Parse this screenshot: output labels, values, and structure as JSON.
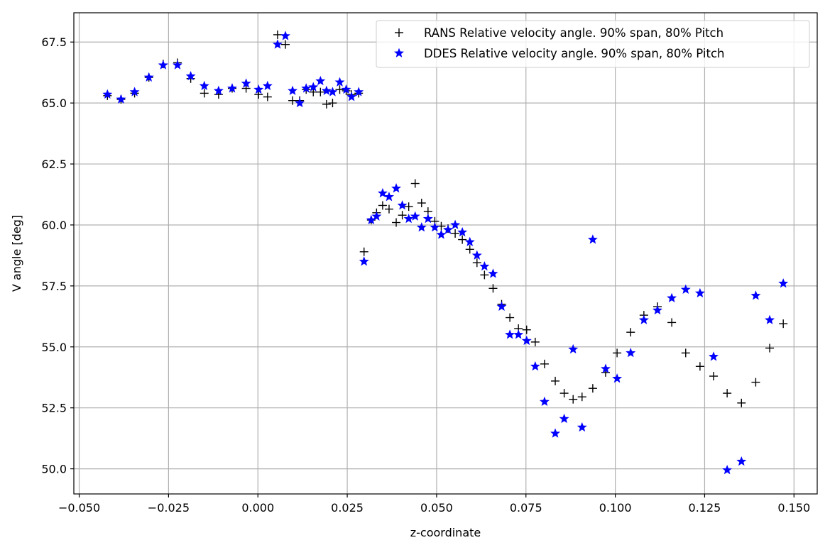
{
  "chart_data": {
    "type": "scatter",
    "xlabel": "z-coordinate",
    "ylabel": "V angle [deg]",
    "xlim": [
      -0.0515,
      0.1565
    ],
    "ylim": [
      48.97,
      68.7
    ],
    "x_ticks": [
      -0.05,
      -0.025,
      0.0,
      0.025,
      0.05,
      0.075,
      0.1,
      0.125,
      0.15
    ],
    "x_tick_labels": [
      "−0.050",
      "−0.025",
      "0.000",
      "0.025",
      "0.050",
      "0.075",
      "0.100",
      "0.125",
      "0.150"
    ],
    "y_ticks": [
      50.0,
      52.5,
      55.0,
      57.5,
      60.0,
      62.5,
      65.0,
      67.5
    ],
    "y_tick_labels": [
      "50.0",
      "52.5",
      "55.0",
      "57.5",
      "60.0",
      "62.5",
      "65.0",
      "67.5"
    ],
    "grid": true,
    "legend_position": "top-right",
    "series": [
      {
        "name": "RANS Relative velocity angle. 90% span, 80% Pitch",
        "marker": "plus",
        "color": "#000000",
        "points": [
          [
            -0.0421,
            65.3
          ],
          [
            -0.0383,
            65.15
          ],
          [
            -0.0345,
            65.4
          ],
          [
            -0.0305,
            66.05
          ],
          [
            -0.0265,
            66.6
          ],
          [
            -0.0225,
            66.65
          ],
          [
            -0.0188,
            66.0
          ],
          [
            -0.015,
            65.4
          ],
          [
            -0.011,
            65.35
          ],
          [
            -0.0072,
            65.6
          ],
          [
            -0.0033,
            65.6
          ],
          [
            0.0002,
            65.35
          ],
          [
            0.0027,
            65.25
          ],
          [
            0.0055,
            67.8
          ],
          [
            0.0077,
            67.4
          ],
          [
            0.0097,
            65.1
          ],
          [
            0.0117,
            65.1
          ],
          [
            0.0135,
            65.55
          ],
          [
            0.0155,
            65.45
          ],
          [
            0.0175,
            65.45
          ],
          [
            0.0192,
            64.95
          ],
          [
            0.0209,
            65.0
          ],
          [
            0.0229,
            65.55
          ],
          [
            0.0247,
            65.5
          ],
          [
            0.0262,
            65.35
          ],
          [
            0.0282,
            65.4
          ],
          [
            0.0297,
            58.9
          ],
          [
            0.0317,
            60.2
          ],
          [
            0.0332,
            60.5
          ],
          [
            0.0349,
            60.8
          ],
          [
            0.0367,
            60.65
          ],
          [
            0.0387,
            60.1
          ],
          [
            0.0404,
            60.4
          ],
          [
            0.0422,
            60.75
          ],
          [
            0.044,
            61.7
          ],
          [
            0.0458,
            60.9
          ],
          [
            0.0476,
            60.55
          ],
          [
            0.0495,
            60.15
          ],
          [
            0.0513,
            59.95
          ],
          [
            0.0532,
            59.85
          ],
          [
            0.0552,
            59.65
          ],
          [
            0.0572,
            59.4
          ],
          [
            0.0593,
            59.0
          ],
          [
            0.0613,
            58.45
          ],
          [
            0.0634,
            57.95
          ],
          [
            0.0658,
            57.4
          ],
          [
            0.0682,
            56.75
          ],
          [
            0.0705,
            56.2
          ],
          [
            0.0729,
            55.75
          ],
          [
            0.0752,
            55.7
          ],
          [
            0.0776,
            55.2
          ],
          [
            0.0802,
            54.3
          ],
          [
            0.0832,
            53.6
          ],
          [
            0.0857,
            53.1
          ],
          [
            0.0882,
            52.85
          ],
          [
            0.0907,
            52.95
          ],
          [
            0.0937,
            53.3
          ],
          [
            0.0973,
            53.95
          ],
          [
            0.1005,
            54.75
          ],
          [
            0.1043,
            55.6
          ],
          [
            0.108,
            56.3
          ],
          [
            0.1118,
            56.65
          ],
          [
            0.1158,
            56.0
          ],
          [
            0.1197,
            54.75
          ],
          [
            0.1237,
            54.2
          ],
          [
            0.1275,
            53.8
          ],
          [
            0.1313,
            53.1
          ],
          [
            0.1353,
            52.7
          ],
          [
            0.1393,
            53.55
          ],
          [
            0.1432,
            54.95
          ],
          [
            0.147,
            55.95
          ]
        ]
      },
      {
        "name": "DDES Relative velocity angle. 90% span, 80% Pitch",
        "marker": "star",
        "color": "#0000ff",
        "points": [
          [
            -0.0421,
            65.35
          ],
          [
            -0.0383,
            65.15
          ],
          [
            -0.0345,
            65.45
          ],
          [
            -0.0305,
            66.05
          ],
          [
            -0.0265,
            66.55
          ],
          [
            -0.0225,
            66.55
          ],
          [
            -0.0188,
            66.1
          ],
          [
            -0.015,
            65.7
          ],
          [
            -0.011,
            65.5
          ],
          [
            -0.0072,
            65.6
          ],
          [
            -0.0033,
            65.8
          ],
          [
            0.0002,
            65.55
          ],
          [
            0.0027,
            65.7
          ],
          [
            0.0055,
            67.4
          ],
          [
            0.0077,
            67.75
          ],
          [
            0.0097,
            65.5
          ],
          [
            0.0117,
            65.0
          ],
          [
            0.0135,
            65.6
          ],
          [
            0.0155,
            65.65
          ],
          [
            0.0175,
            65.9
          ],
          [
            0.0192,
            65.5
          ],
          [
            0.0209,
            65.45
          ],
          [
            0.0229,
            65.85
          ],
          [
            0.0247,
            65.55
          ],
          [
            0.0262,
            65.25
          ],
          [
            0.0282,
            65.45
          ],
          [
            0.0297,
            58.5
          ],
          [
            0.0317,
            60.2
          ],
          [
            0.0332,
            60.35
          ],
          [
            0.0349,
            61.3
          ],
          [
            0.0367,
            61.15
          ],
          [
            0.0387,
            61.5
          ],
          [
            0.0404,
            60.8
          ],
          [
            0.0422,
            60.25
          ],
          [
            0.044,
            60.35
          ],
          [
            0.0458,
            59.9
          ],
          [
            0.0476,
            60.25
          ],
          [
            0.0495,
            59.9
          ],
          [
            0.0513,
            59.6
          ],
          [
            0.0532,
            59.8
          ],
          [
            0.0552,
            60.0
          ],
          [
            0.0572,
            59.7
          ],
          [
            0.0593,
            59.3
          ],
          [
            0.0613,
            58.75
          ],
          [
            0.0634,
            58.3
          ],
          [
            0.0658,
            58.0
          ],
          [
            0.0682,
            56.65
          ],
          [
            0.0705,
            55.5
          ],
          [
            0.0729,
            55.5
          ],
          [
            0.0752,
            55.25
          ],
          [
            0.0776,
            54.2
          ],
          [
            0.0802,
            52.75
          ],
          [
            0.0832,
            51.45
          ],
          [
            0.0857,
            52.05
          ],
          [
            0.0882,
            54.9
          ],
          [
            0.0907,
            51.7
          ],
          [
            0.0937,
            59.4
          ],
          [
            0.0973,
            54.1
          ],
          [
            0.1005,
            53.7
          ],
          [
            0.1043,
            54.75
          ],
          [
            0.108,
            56.1
          ],
          [
            0.1118,
            56.5
          ],
          [
            0.1158,
            57.0
          ],
          [
            0.1197,
            57.35
          ],
          [
            0.1237,
            57.2
          ],
          [
            0.1275,
            54.6
          ],
          [
            0.1313,
            49.95
          ],
          [
            0.1353,
            50.3
          ],
          [
            0.1393,
            57.1
          ],
          [
            0.1432,
            56.1
          ],
          [
            0.147,
            57.6
          ]
        ]
      }
    ]
  }
}
